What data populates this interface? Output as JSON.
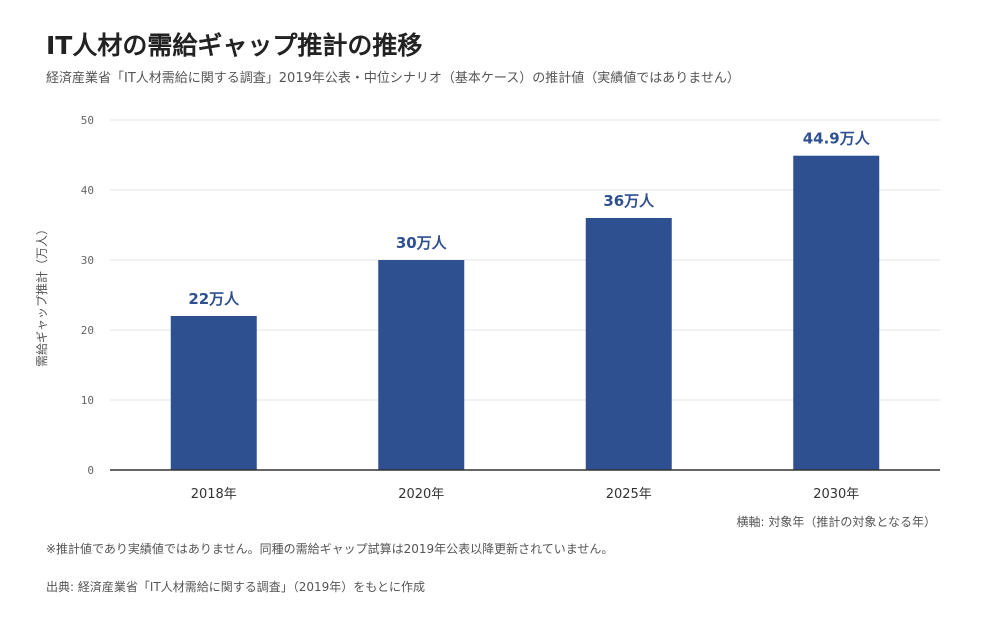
{
  "header": {
    "title": "IT人材の需給ギャップ推計の推移",
    "subtitle": "経済産業省「IT人材需給に関する調査」2019年公表・中位シナリオ（基本ケース）の推計値（実績値ではありません）"
  },
  "colors": {
    "bar": "#2e5090",
    "data_label": "#2e5090",
    "grid": "#e6e6e6",
    "axis": "#333333"
  },
  "chart_data": {
    "type": "bar",
    "title": "IT人材の需給ギャップ推計の推移",
    "subtitle": "経済産業省「IT人材需給に関する調査」2019年公表・中位シナリオ（基本ケース）の推計値（実績値ではありません）",
    "ylabel": "需給ギャップ推計（万人）",
    "xlabel": "横軸: 対象年（推計の対象となる年）",
    "categories": [
      "2018年",
      "2020年",
      "2025年",
      "2030年"
    ],
    "values": [
      22,
      30,
      36,
      44.9
    ],
    "data_labels": [
      "22万人",
      "30万人",
      "36万人",
      "44.9万人"
    ],
    "ylim": [
      0,
      50
    ],
    "yticks": [
      "0",
      "10",
      "20",
      "30",
      "40",
      "50"
    ],
    "grid": true
  },
  "footer": {
    "note": "※推計値であり実績値ではありません。同種の需給ギャップ試算は2019年公表以降更新されていません。",
    "source": "出典: 経済産業省「IT人材需給に関する調査」（2019年）をもとに作成"
  }
}
